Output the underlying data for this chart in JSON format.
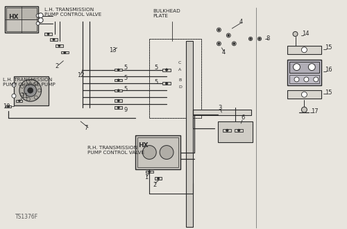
{
  "bg_color": "#e8e5de",
  "line_color": "#2a2a2a",
  "part_number": "TS1376F",
  "labels": {
    "lh_trans_pump_control": "L.H. TRANSMISSION\nPUMP CONTROL VALVE",
    "lh_trans_charge": "L.H. TRANSMISSION\nPUMP CHARGE PUMP",
    "rh_trans_pump_control": "R.H. TRANSMISSION\nPUMP CONTROL VALVE",
    "bulkhead": "BULKHEAD\nPLATE"
  },
  "font_size_label": 5.2,
  "font_size_part": 6.0,
  "font_size_hx": 6.5
}
